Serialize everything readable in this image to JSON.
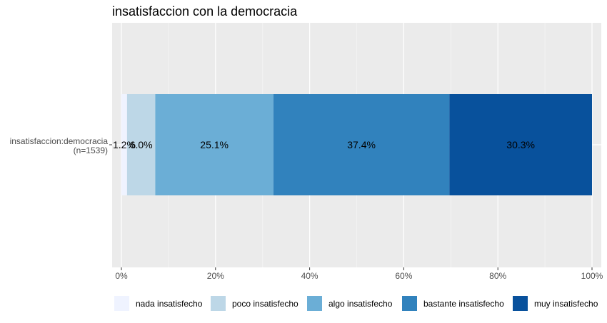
{
  "chart_data": {
    "type": "bar",
    "orientation": "horizontal",
    "stacked": true,
    "title": "insatisfaccion con la democracia",
    "categories": [
      "insatisfaccion:democracia"
    ],
    "category_label": [
      "insatisfaccion:democracia",
      "(n=1539)"
    ],
    "xlabel": "",
    "ylabel": "",
    "xlim": [
      0,
      100
    ],
    "x_ticks": [
      "0%",
      "20%",
      "40%",
      "60%",
      "80%",
      "100%"
    ],
    "grid": true,
    "legend_position": "bottom",
    "series": [
      {
        "name": "nada insatisfecho",
        "values": [
          1.2
        ],
        "label": "1.2%",
        "color": "#eff3ff"
      },
      {
        "name": "poco insatisfecho",
        "values": [
          6.0
        ],
        "label": "6.0%",
        "color": "#bdd7e7"
      },
      {
        "name": "algo insatisfecho",
        "values": [
          25.1
        ],
        "label": "25.1%",
        "color": "#6baed6"
      },
      {
        "name": "bastante insatisfecho",
        "values": [
          37.4
        ],
        "label": "37.4%",
        "color": "#3182bd"
      },
      {
        "name": "muy insatisfecho",
        "values": [
          30.3
        ],
        "label": "30.3%",
        "color": "#08519c"
      }
    ]
  }
}
